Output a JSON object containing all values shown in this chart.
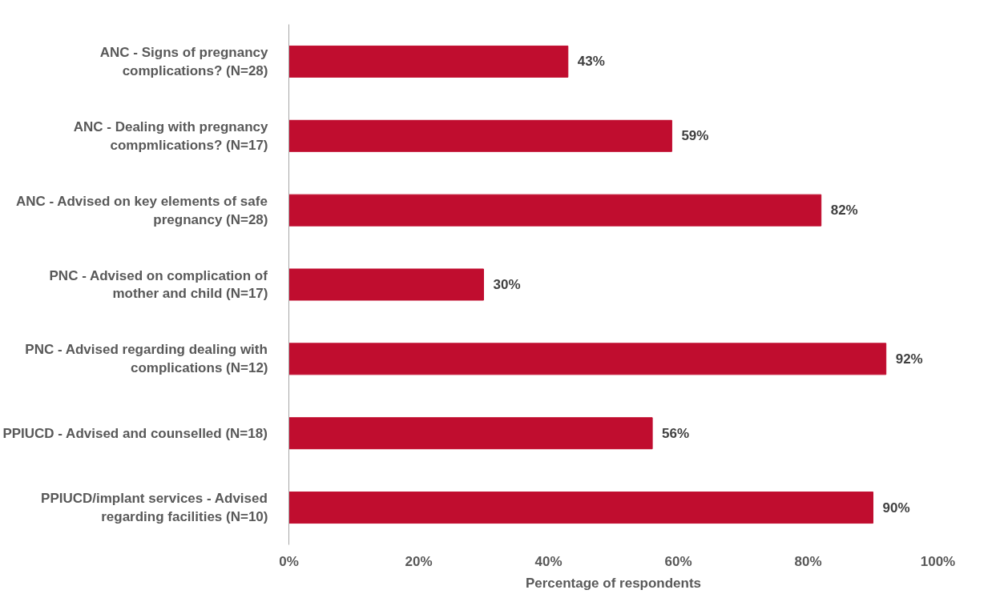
{
  "chart_data": {
    "type": "bar",
    "orientation": "horizontal",
    "xlabel": "Percentage of respondents",
    "categories": [
      "ANC - Signs of pregnancy complications? (N=28)",
      "ANC - Dealing with pregnancy compmlications? (N=17)",
      "ANC - Advised on key elements of safe pregnancy (N=28)",
      "PNC - Advised on complication of mother and child (N=17)",
      "PNC - Advised regarding dealing with complications (N=12)",
      "PPIUCD - Advised and counselled (N=18)",
      "PPIUCD/implant services - Advised regarding facilities (N=10)"
    ],
    "values": [
      43,
      59,
      82,
      30,
      92,
      56,
      90
    ],
    "value_labels": [
      "43%",
      "59%",
      "82%",
      "30%",
      "92%",
      "56%",
      "90%"
    ],
    "color": "#c00d2f",
    "xlim": [
      0,
      100
    ],
    "xticks": [
      {
        "value": 0,
        "label": "0%"
      },
      {
        "value": 20,
        "label": "20%"
      },
      {
        "value": 40,
        "label": "40%"
      },
      {
        "value": 60,
        "label": "60%"
      },
      {
        "value": 80,
        "label": "80%"
      },
      {
        "value": 100,
        "label": "100%"
      }
    ],
    "grid": false
  }
}
